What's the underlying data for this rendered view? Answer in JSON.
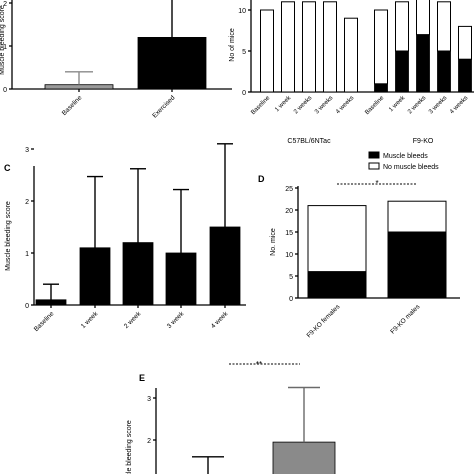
{
  "panel_letters": {
    "c": "C",
    "d": "D",
    "e": "E"
  },
  "chart_data": [
    {
      "id": "A",
      "type": "bar",
      "ylabel": "Muscle bleeding score",
      "categories": [
        "Baseline",
        "Exercised"
      ],
      "values": [
        0.1,
        1.2
      ],
      "errors": [
        0.3,
        1.4
      ],
      "colors": [
        "#9a9a9a",
        "#000000"
      ],
      "ylim": [
        0,
        2.1
      ],
      "yticks": [
        0,
        1,
        2
      ]
    },
    {
      "id": "B",
      "type": "bar",
      "stacked": true,
      "ylabel": "No of mice",
      "yticks": [
        0,
        5,
        10
      ],
      "ylim": [
        0,
        12
      ],
      "groups": [
        {
          "label": "C57BL/6NTac",
          "categories": [
            "Baseline",
            "1 week",
            "2 weeks",
            "3 weeks",
            "4 weeks"
          ],
          "bleeds": [
            0,
            0,
            0,
            0,
            0
          ],
          "no_bleeds": [
            10,
            11,
            11,
            11,
            9
          ]
        },
        {
          "label": "F9-KO",
          "categories": [
            "Baseline",
            "1 week",
            "2 weeks",
            "3 weeks",
            "4 weeks"
          ],
          "bleeds": [
            1,
            5,
            7,
            5,
            4
          ],
          "no_bleeds": [
            9,
            6,
            5,
            6,
            4
          ]
        }
      ]
    },
    {
      "id": "C",
      "type": "bar",
      "ylabel": "Muscle bleeding score",
      "categories": [
        "Baseline",
        "1 week",
        "2 week",
        "3 week",
        "4 week"
      ],
      "values": [
        0.1,
        1.1,
        1.2,
        1.0,
        1.5
      ],
      "errors": [
        0.3,
        1.37,
        1.42,
        1.22,
        1.6
      ],
      "ylim": [
        0,
        3.5
      ],
      "yticks": [
        0,
        1,
        2,
        3
      ]
    },
    {
      "id": "D",
      "type": "bar",
      "stacked": true,
      "ylabel": "No. mice",
      "categories": [
        "F9-KO females",
        "F9-KO males"
      ],
      "series": [
        {
          "name": "Muscle bleeds",
          "values": [
            6,
            15
          ],
          "color": "#000000"
        },
        {
          "name": "No muscle bleeds",
          "values": [
            15,
            7
          ],
          "color": "#ffffff"
        }
      ],
      "ylim": [
        0,
        25
      ],
      "yticks": [
        0,
        5,
        10,
        15,
        20,
        25
      ],
      "significance": "*"
    },
    {
      "id": "E",
      "type": "bar",
      "ylabel": "Muscle bleeding score",
      "yticks": [
        2,
        3
      ],
      "values": [
        null,
        1.95
      ],
      "error_tops": [
        1.6,
        3.25
      ],
      "colors": [
        "#ffffff",
        "#8a8a8a"
      ],
      "significance": "**"
    }
  ]
}
